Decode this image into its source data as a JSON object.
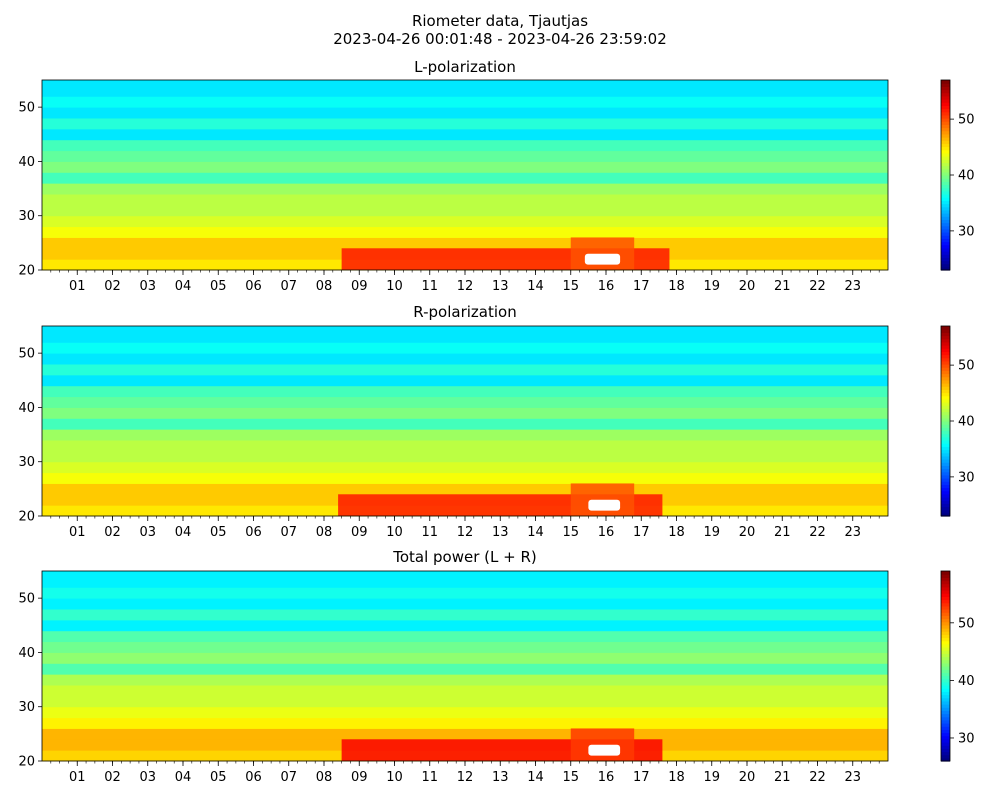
{
  "figure": {
    "title_line1": "Riometer data, Tjautjas",
    "title_line2": "2023-04-26 00:01:48 - 2023-04-26 23:59:02"
  },
  "colors": {
    "colormap": "jet",
    "jet_stops": [
      "#00007f",
      "#0000ff",
      "#007fff",
      "#00ffff",
      "#7fff7f",
      "#ffff00",
      "#ff7f00",
      "#ff0000",
      "#7f0000"
    ],
    "saturated_high": "#ffffff"
  },
  "chart_data": [
    {
      "type": "heatmap",
      "title": "L-polarization",
      "x_tick_labels": [
        "01",
        "02",
        "03",
        "04",
        "05",
        "06",
        "07",
        "08",
        "09",
        "10",
        "11",
        "12",
        "13",
        "14",
        "15",
        "16",
        "17",
        "18",
        "19",
        "20",
        "21",
        "22",
        "23"
      ],
      "x_range_hours": [
        0,
        24
      ],
      "y_ticks": [
        20,
        30,
        40,
        50
      ],
      "ylim": [
        20,
        55
      ],
      "colorbar_ticks": [
        30,
        40,
        50
      ],
      "colorbar_range": [
        23,
        57
      ],
      "bands": [
        {
          "y": 20,
          "value": 45
        },
        {
          "y": 22,
          "value": 46
        },
        {
          "y": 24,
          "value": 46
        },
        {
          "y": 26,
          "value": 44
        },
        {
          "y": 28,
          "value": 43
        },
        {
          "y": 30,
          "value": 42
        },
        {
          "y": 32,
          "value": 42
        },
        {
          "y": 34,
          "value": 41
        },
        {
          "y": 36,
          "value": 38
        },
        {
          "y": 38,
          "value": 40
        },
        {
          "y": 40,
          "value": 39
        },
        {
          "y": 42,
          "value": 38
        },
        {
          "y": 44,
          "value": 35
        },
        {
          "y": 46,
          "value": 37
        },
        {
          "y": 48,
          "value": 35
        },
        {
          "y": 50,
          "value": 36
        },
        {
          "y": 52,
          "value": 35
        },
        {
          "y": 54,
          "value": 35
        }
      ],
      "events": [
        {
          "hour_start": 8.5,
          "hour_end": 17.8,
          "y_start": 20,
          "y_end": 24,
          "value": 52
        },
        {
          "hour_start": 15.0,
          "hour_end": 16.8,
          "y_start": 20,
          "y_end": 26,
          "value": 50
        },
        {
          "hour_start": 15.4,
          "hour_end": 16.4,
          "y_start": 21,
          "y_end": 23,
          "value": 58
        }
      ]
    },
    {
      "type": "heatmap",
      "title": "R-polarization",
      "x_tick_labels": [
        "01",
        "02",
        "03",
        "04",
        "05",
        "06",
        "07",
        "08",
        "09",
        "10",
        "11",
        "12",
        "13",
        "14",
        "15",
        "16",
        "17",
        "18",
        "19",
        "20",
        "21",
        "22",
        "23"
      ],
      "x_range_hours": [
        0,
        24
      ],
      "y_ticks": [
        20,
        30,
        40,
        50
      ],
      "ylim": [
        20,
        55
      ],
      "colorbar_ticks": [
        30,
        40,
        50
      ],
      "colorbar_range": [
        23,
        57
      ],
      "bands": [
        {
          "y": 20,
          "value": 45
        },
        {
          "y": 22,
          "value": 46
        },
        {
          "y": 24,
          "value": 46
        },
        {
          "y": 26,
          "value": 44
        },
        {
          "y": 28,
          "value": 43
        },
        {
          "y": 30,
          "value": 42
        },
        {
          "y": 32,
          "value": 42
        },
        {
          "y": 34,
          "value": 41
        },
        {
          "y": 36,
          "value": 38
        },
        {
          "y": 38,
          "value": 40
        },
        {
          "y": 40,
          "value": 39
        },
        {
          "y": 42,
          "value": 38
        },
        {
          "y": 44,
          "value": 35
        },
        {
          "y": 46,
          "value": 37
        },
        {
          "y": 48,
          "value": 35
        },
        {
          "y": 50,
          "value": 36
        },
        {
          "y": 52,
          "value": 35
        },
        {
          "y": 54,
          "value": 35
        }
      ],
      "events": [
        {
          "hour_start": 8.4,
          "hour_end": 17.6,
          "y_start": 20,
          "y_end": 24,
          "value": 52
        },
        {
          "hour_start": 15.0,
          "hour_end": 16.8,
          "y_start": 20,
          "y_end": 26,
          "value": 50
        },
        {
          "hour_start": 15.5,
          "hour_end": 16.4,
          "y_start": 21,
          "y_end": 23,
          "value": 58
        }
      ]
    },
    {
      "type": "heatmap",
      "title": "Total power (L + R)",
      "x_tick_labels": [
        "01",
        "02",
        "03",
        "04",
        "05",
        "06",
        "07",
        "08",
        "09",
        "10",
        "11",
        "12",
        "13",
        "14",
        "15",
        "16",
        "17",
        "18",
        "19",
        "20",
        "21",
        "22",
        "23"
      ],
      "x_range_hours": [
        0,
        24
      ],
      "y_ticks": [
        20,
        30,
        40,
        50
      ],
      "ylim": [
        20,
        55
      ],
      "colorbar_ticks": [
        30,
        40,
        50
      ],
      "colorbar_range": [
        26,
        59
      ],
      "bands": [
        {
          "y": 20,
          "value": 48
        },
        {
          "y": 22,
          "value": 49
        },
        {
          "y": 24,
          "value": 49
        },
        {
          "y": 26,
          "value": 47
        },
        {
          "y": 28,
          "value": 46
        },
        {
          "y": 30,
          "value": 45
        },
        {
          "y": 32,
          "value": 45
        },
        {
          "y": 34,
          "value": 44
        },
        {
          "y": 36,
          "value": 41
        },
        {
          "y": 38,
          "value": 43
        },
        {
          "y": 40,
          "value": 42
        },
        {
          "y": 42,
          "value": 41
        },
        {
          "y": 44,
          "value": 38
        },
        {
          "y": 46,
          "value": 40
        },
        {
          "y": 48,
          "value": 38
        },
        {
          "y": 50,
          "value": 39
        },
        {
          "y": 52,
          "value": 38
        },
        {
          "y": 54,
          "value": 38
        }
      ],
      "events": [
        {
          "hour_start": 8.5,
          "hour_end": 17.6,
          "y_start": 20,
          "y_end": 24,
          "value": 55
        },
        {
          "hour_start": 15.0,
          "hour_end": 16.8,
          "y_start": 20,
          "y_end": 26,
          "value": 53
        },
        {
          "hour_start": 15.5,
          "hour_end": 16.4,
          "y_start": 21,
          "y_end": 23,
          "value": 60
        }
      ]
    }
  ]
}
